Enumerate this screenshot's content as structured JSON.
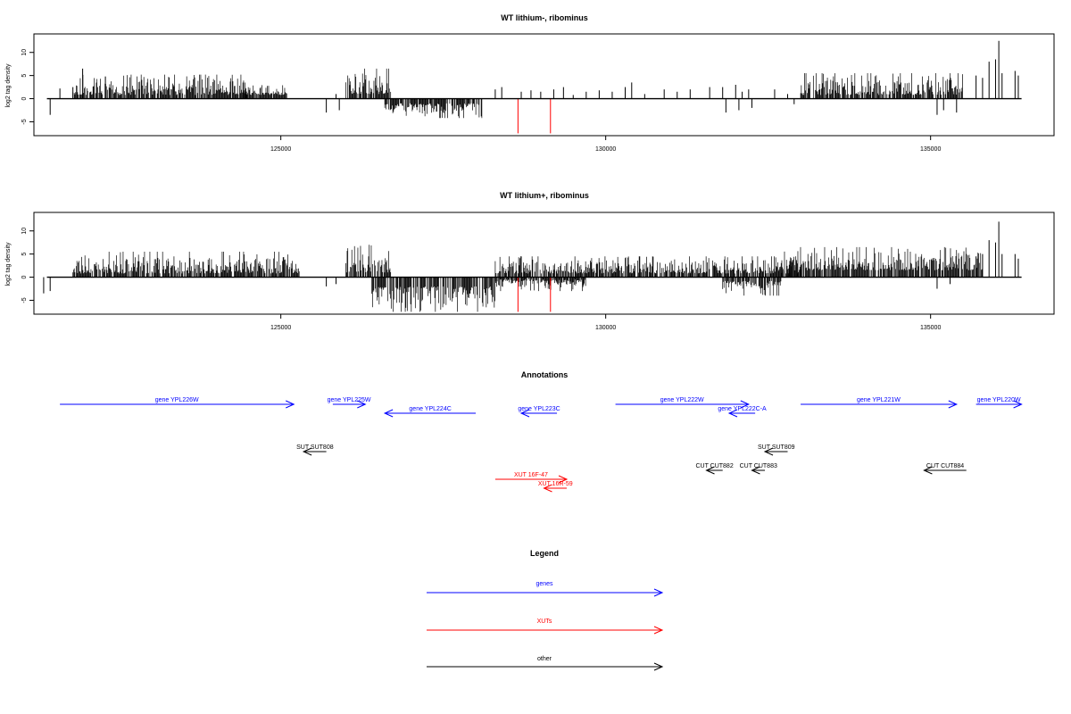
{
  "chart_data": [
    {
      "type": "bar",
      "title": "WT lithium-, ribominus",
      "ylabel": "log2 tag density",
      "xlim": [
        121200,
        136900
      ],
      "ylim": [
        -8,
        14
      ],
      "y_ticks": [
        -5,
        0,
        5,
        10
      ],
      "y_tick_labels": [
        "-5",
        "0",
        "5",
        "10"
      ],
      "x_ticks": [
        125000,
        130000,
        135000
      ],
      "x_tick_labels": [
        "125000",
        "130000",
        "135000"
      ],
      "series_color": "#000000",
      "highlight_color": "#ff0000",
      "baseline_from": 121400,
      "baseline_to": 136400,
      "dense_regions": [
        {
          "from": 121800,
          "to": 124500,
          "sign": 1,
          "min": 0.8,
          "max": 5.2,
          "seed": 11
        },
        {
          "from": 124400,
          "to": 125100,
          "sign": 1,
          "min": 0.8,
          "max": 3.0,
          "seed": 12
        },
        {
          "from": 126000,
          "to": 126700,
          "sign": 1,
          "min": 1.0,
          "max": 6.5,
          "seed": 13
        },
        {
          "from": 126600,
          "to": 128100,
          "sign": -1,
          "min": 1.0,
          "max": 4.2,
          "seed": 14
        },
        {
          "from": 133000,
          "to": 135500,
          "sign": 1,
          "min": 0.8,
          "max": 5.5,
          "seed": 15
        }
      ],
      "bars": [
        [
          121450,
          -3.5
        ],
        [
          121600,
          2.2
        ],
        [
          121800,
          2.5
        ],
        [
          121950,
          6.5
        ],
        [
          122300,
          4.8
        ],
        [
          125700,
          -3.0
        ],
        [
          125900,
          -2.5
        ],
        [
          125850,
          1.0
        ],
        [
          128300,
          2.0
        ],
        [
          128400,
          2.5
        ],
        [
          128700,
          1.5
        ],
        [
          128850,
          1.8
        ],
        [
          129000,
          1.5
        ],
        [
          129200,
          2.0
        ],
        [
          129350,
          2.5
        ],
        [
          129500,
          0.8
        ],
        [
          129700,
          1.5
        ],
        [
          129900,
          1.8
        ],
        [
          130100,
          1.5
        ],
        [
          130300,
          2.5
        ],
        [
          130400,
          3.5
        ],
        [
          130600,
          1.0
        ],
        [
          130900,
          2.0
        ],
        [
          131100,
          1.5
        ],
        [
          131300,
          2.0
        ],
        [
          131600,
          2.5
        ],
        [
          131800,
          2.5
        ],
        [
          131850,
          -3.0
        ],
        [
          132000,
          3.0
        ],
        [
          132050,
          -2.5
        ],
        [
          132100,
          1.5
        ],
        [
          132200,
          2.0
        ],
        [
          132250,
          -2.0
        ],
        [
          132600,
          2.0
        ],
        [
          132800,
          1.0
        ],
        [
          132900,
          -1.2
        ],
        [
          135100,
          -3.5
        ],
        [
          135200,
          -2.5
        ],
        [
          135400,
          -3.0
        ],
        [
          135700,
          5.0
        ],
        [
          135800,
          4.5
        ],
        [
          135900,
          8.0
        ],
        [
          136000,
          8.5
        ],
        [
          136050,
          12.5
        ],
        [
          136100,
          5.5
        ],
        [
          136300,
          6.0
        ],
        [
          136350,
          5.0
        ]
      ],
      "red_bars": [
        [
          128650,
          -7.5
        ],
        [
          129150,
          -7.5
        ]
      ]
    },
    {
      "type": "bar",
      "title": "WT lithium+, ribominus",
      "ylabel": "log2 tag density",
      "xlim": [
        121200,
        136900
      ],
      "ylim": [
        -8,
        14
      ],
      "y_ticks": [
        -5,
        0,
        5,
        10
      ],
      "y_tick_labels": [
        "-5",
        "0",
        "5",
        "10"
      ],
      "x_ticks": [
        125000,
        130000,
        135000
      ],
      "x_tick_labels": [
        "125000",
        "130000",
        "135000"
      ],
      "series_color": "#000000",
      "highlight_color": "#ff0000",
      "baseline_from": 121400,
      "baseline_to": 136400,
      "dense_regions": [
        {
          "from": 121800,
          "to": 125300,
          "sign": 1,
          "min": 0.8,
          "max": 5.5,
          "seed": 21
        },
        {
          "from": 126000,
          "to": 126700,
          "sign": 1,
          "min": 1.0,
          "max": 7.0,
          "seed": 22
        },
        {
          "from": 126400,
          "to": 128300,
          "sign": -1,
          "min": 2.0,
          "max": 7.5,
          "seed": 23
        },
        {
          "from": 128300,
          "to": 129700,
          "sign": -1,
          "min": 0.5,
          "max": 3.0,
          "seed": 24
        },
        {
          "from": 128300,
          "to": 133000,
          "sign": 1,
          "min": 0.8,
          "max": 4.5,
          "seed": 25
        },
        {
          "from": 131800,
          "to": 132700,
          "sign": -1,
          "min": 0.8,
          "max": 4.0,
          "seed": 26
        },
        {
          "from": 132700,
          "to": 135800,
          "sign": 1,
          "min": 1.5,
          "max": 6.5,
          "seed": 27
        }
      ],
      "bars": [
        [
          121350,
          -3.5
        ],
        [
          121450,
          -3.0
        ],
        [
          125700,
          -2.0
        ],
        [
          125850,
          -1.5
        ],
        [
          135100,
          -2.5
        ],
        [
          135300,
          -1.5
        ],
        [
          135700,
          4.5
        ],
        [
          135800,
          5.0
        ],
        [
          135900,
          8.0
        ],
        [
          136000,
          7.5
        ],
        [
          136050,
          12.0
        ],
        [
          136100,
          5.0
        ],
        [
          136300,
          5.0
        ],
        [
          136350,
          4.0
        ]
      ],
      "red_bars": [
        [
          128650,
          -7.5
        ],
        [
          129150,
          -7.5
        ]
      ]
    }
  ],
  "annotations": {
    "title": "Annotations",
    "gene_color": "#0000ff",
    "xut_color": "#ff0000",
    "other_color": "#000000",
    "features": [
      {
        "label": "gene YPL226W",
        "start": 121600,
        "end": 125200,
        "dir": 1,
        "kind": "gene",
        "row": 0
      },
      {
        "label": "gene YPL225W",
        "start": 125800,
        "end": 126300,
        "dir": 1,
        "kind": "gene",
        "row": 0
      },
      {
        "label": "gene YPL224C",
        "start": 126600,
        "end": 128000,
        "dir": -1,
        "kind": "gene",
        "row": 1
      },
      {
        "label": "gene YPL223C",
        "start": 128700,
        "end": 129250,
        "dir": -1,
        "kind": "gene",
        "row": 1
      },
      {
        "label": "gene YPL222W",
        "start": 130150,
        "end": 132200,
        "dir": 1,
        "kind": "gene",
        "row": 0
      },
      {
        "label": "gene YPL222C-A",
        "start": 131900,
        "end": 132300,
        "dir": -1,
        "kind": "gene",
        "row": 1
      },
      {
        "label": "gene YPL221W",
        "start": 133000,
        "end": 135400,
        "dir": 1,
        "kind": "gene",
        "row": 0
      },
      {
        "label": "gene YPL220W",
        "start": 135700,
        "end": 136400,
        "dir": 1,
        "kind": "gene",
        "row": 0
      },
      {
        "label": "SUT SUT808",
        "start": 125350,
        "end": 125700,
        "dir": -1,
        "kind": "other",
        "row": 3
      },
      {
        "label": "SUT SUT809",
        "start": 132450,
        "end": 132800,
        "dir": -1,
        "kind": "other",
        "row": 3
      },
      {
        "label": "CUT CUT882",
        "start": 131550,
        "end": 131800,
        "dir": -1,
        "kind": "other",
        "row": 4
      },
      {
        "label": "CUT CUT883",
        "start": 132250,
        "end": 132450,
        "dir": -1,
        "kind": "other",
        "row": 4
      },
      {
        "label": "CUT CUT884",
        "start": 134900,
        "end": 135550,
        "dir": -1,
        "kind": "other",
        "row": 4
      },
      {
        "label": "XUT 16F-47",
        "start": 128300,
        "end": 129400,
        "dir": 1,
        "kind": "xut",
        "row": 5
      },
      {
        "label": "XUT 16R-59",
        "start": 129050,
        "end": 129400,
        "dir": -1,
        "kind": "xut",
        "row": 6
      }
    ]
  },
  "legend": {
    "title": "Legend",
    "items": [
      {
        "label": "genes",
        "color": "#0000ff"
      },
      {
        "label": "XUTs",
        "color": "#ff0000"
      },
      {
        "label": "other",
        "color": "#000000"
      }
    ]
  }
}
